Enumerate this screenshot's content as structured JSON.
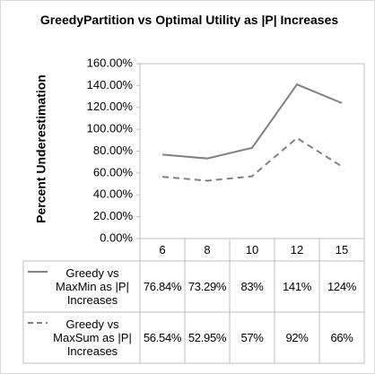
{
  "chart_data": {
    "type": "line",
    "title": "GreedyPartition vs Optimal Utility as |P| Increases",
    "y_label": "Percent Underestimation",
    "categories": [
      "6",
      "8",
      "10",
      "12",
      "15"
    ],
    "series": [
      {
        "name": "Greedy vs MaxMin as |P| Increases",
        "color": "#808080",
        "dash": false,
        "values": [
          76.84,
          73.29,
          83,
          141,
          124
        ],
        "value_labels": [
          "76.84%",
          "73.29%",
          "83%",
          "141%",
          "124%"
        ]
      },
      {
        "name": "Greedy vs MaxSum as |P| Increases",
        "color": "#808080",
        "dash": true,
        "values": [
          56.54,
          52.95,
          57,
          92,
          66
        ],
        "value_labels": [
          "56.54%",
          "52.95%",
          "57%",
          "92%",
          "66%"
        ]
      }
    ],
    "ylim": [
      0,
      160
    ],
    "yticks": [
      {
        "value": 0,
        "label": "0.00%"
      },
      {
        "value": 20,
        "label": "20.00%"
      },
      {
        "value": 40,
        "label": "40.00%"
      },
      {
        "value": 60,
        "label": "60.00%"
      },
      {
        "value": 80,
        "label": "80.00%"
      },
      {
        "value": 100,
        "label": "100.00%"
      },
      {
        "value": 120,
        "label": "120.00%"
      },
      {
        "value": 140,
        "label": "140.00%"
      },
      {
        "value": 160,
        "label": "160.00%"
      }
    ],
    "data_table": true
  }
}
